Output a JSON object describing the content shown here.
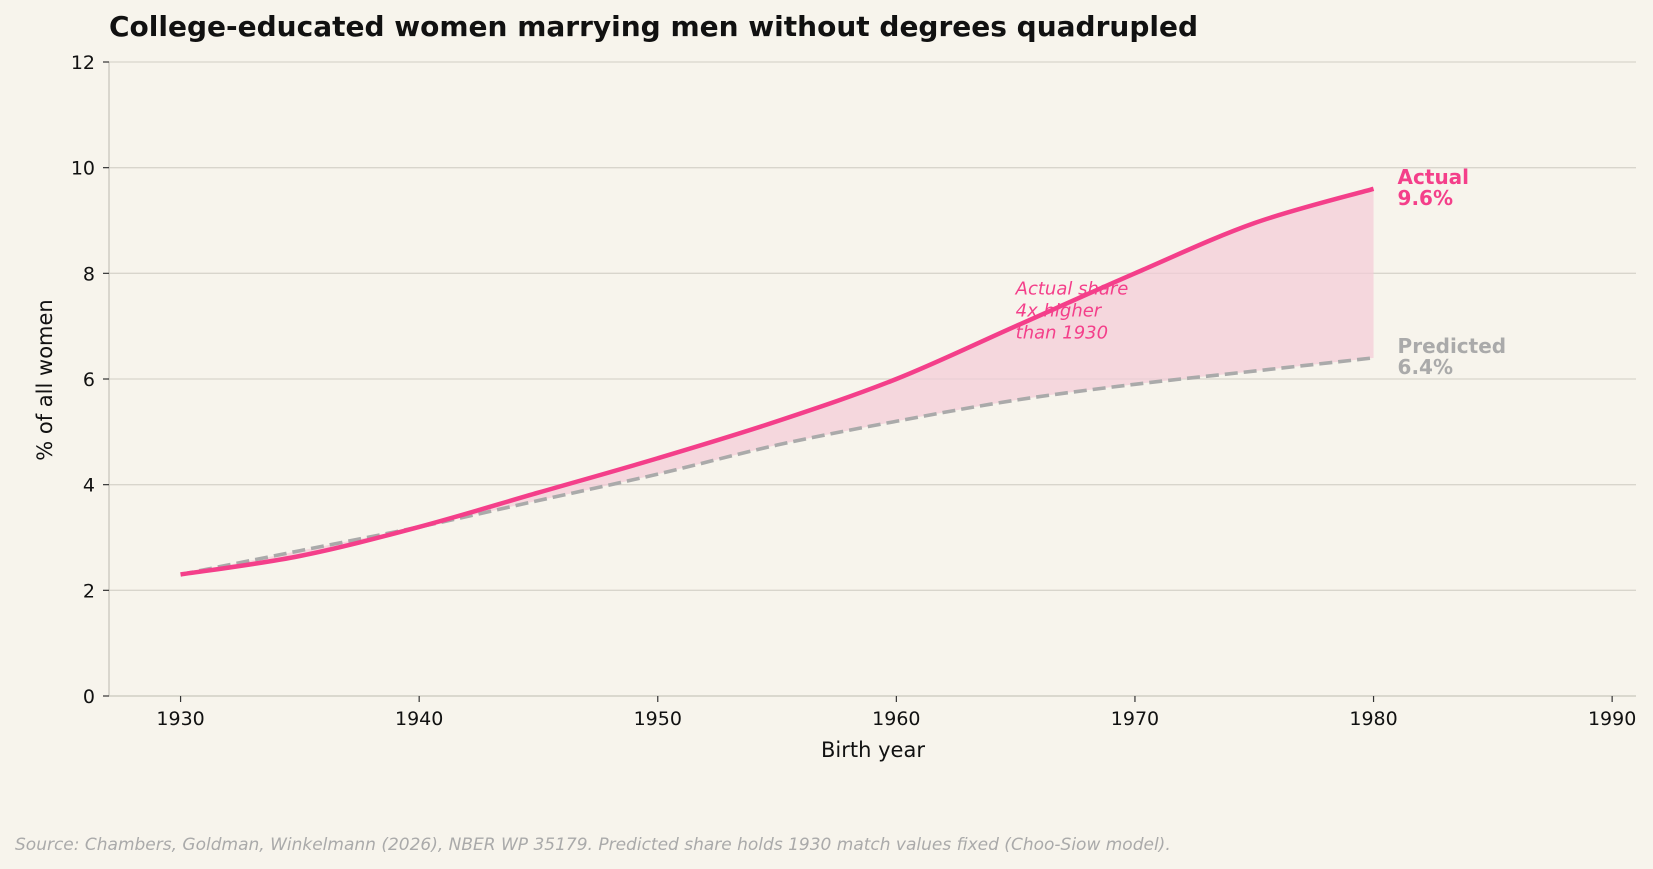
{
  "chart_data": {
    "type": "line",
    "title": "College-educated women marrying men without degrees quadrupled",
    "xlabel": "Birth year",
    "ylabel": "% of all women",
    "xlim": [
      1927,
      1991
    ],
    "ylim": [
      0,
      12
    ],
    "xticks": [
      1930,
      1940,
      1950,
      1960,
      1970,
      1980,
      1990
    ],
    "yticks": [
      0,
      2,
      4,
      6,
      8,
      10,
      12
    ],
    "grid": "horizontal",
    "shade_between_series": true,
    "series": [
      {
        "name": "Actual",
        "style": "solid",
        "color": "#f43f8a",
        "x": [
          1930,
          1935,
          1940,
          1945,
          1950,
          1955,
          1960,
          1965,
          1970,
          1975,
          1980
        ],
        "y": [
          2.3,
          2.65,
          3.2,
          3.85,
          4.5,
          5.2,
          6.0,
          7.0,
          8.0,
          8.95,
          9.6
        ]
      },
      {
        "name": "Predicted",
        "style": "dashed",
        "color": "#aaaaaa",
        "x": [
          1930,
          1935,
          1940,
          1945,
          1950,
          1955,
          1960,
          1965,
          1970,
          1975,
          1980
        ],
        "y": [
          2.3,
          2.75,
          3.2,
          3.7,
          4.2,
          4.75,
          5.2,
          5.6,
          5.9,
          6.15,
          6.4
        ]
      }
    ],
    "end_labels": [
      {
        "series": "Actual",
        "line1": "Actual",
        "line2": "9.6%"
      },
      {
        "series": "Predicted",
        "line1": "Predicted",
        "line2": "6.4%"
      }
    ],
    "annotation": {
      "lines": [
        "Actual share",
        "4x higher",
        "than 1930"
      ],
      "x": 1965,
      "y": 7.6,
      "color": "#f43f8a"
    },
    "source": "Source: Chambers, Goldman, Winkelmann (2026), NBER WP 35179. Predicted share holds 1930 match values fixed (Choo-Siow model).",
    "colors": {
      "background": "#f7f4ec",
      "grid": "#d8d5cc",
      "axis": "#c9c6bd",
      "fill": "#f4cbd7",
      "source_text": "#aaaaaa"
    }
  }
}
